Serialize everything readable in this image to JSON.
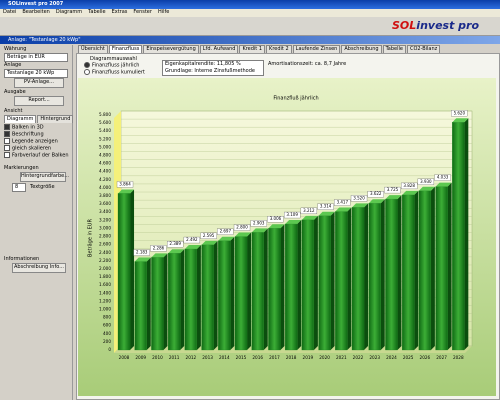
{
  "window": {
    "title": "SOLinvest pro 2007",
    "menu": [
      "Datei",
      "Bearbeiten",
      "Diagramm",
      "Tabelle",
      "Extras",
      "Fenster",
      "Hilfe"
    ],
    "logo": [
      "SOL",
      "invest pro"
    ]
  },
  "document_window": {
    "title": "Anlage: \"Testanlage 20 kWp\""
  },
  "sidebar": {
    "currency_label": "Währung",
    "currency": "Beträge in EUR",
    "plant_label": "Anlage",
    "plant": "Testanlage 20 kWp",
    "plant_button": "PV-Anlage...",
    "output_label": "Ausgabe",
    "report_button": "Report...",
    "view_label": "Ansicht",
    "view_tabs": [
      "Diagramm",
      "Hintergrund"
    ],
    "options": [
      "Balken in 3D",
      "Beschriftung",
      "Legende anzeigen",
      "gleich skalieren",
      "Farbverlauf der Balken"
    ],
    "markers_label": "Markierungen",
    "background_button": "Hintergrundfarbe...",
    "text_size_value": "8",
    "text_size_label": "Textgröße",
    "info_label": "Informationen",
    "info_button": "Abschreibung Info..."
  },
  "tabs": [
    "Übersicht",
    "Finanzfluss",
    "Einspeisevergütung",
    "Lfd. Aufwand",
    "Kredit 1",
    "Kredit 2",
    "Laufende Zinsen",
    "Abschreibung",
    "Tabelle",
    "CO2-Bilanz"
  ],
  "diagram_selection": {
    "title": "Diagrammauswahl",
    "options": [
      "Finanzfluss jährlich",
      "Finanzfluss kumuliert"
    ]
  },
  "results": {
    "return": "Eigenkapitalrendite: 11,805 %",
    "basis": "Grundlage: Interne Zinsfußmethode",
    "payback": "Amortisationszeit: ca. 8,7 Jahre"
  },
  "chart_data": {
    "type": "bar3d",
    "title": "Finanzfluß jährlich",
    "y_label": "Beträge in EUR",
    "color": "#1f8a22",
    "categories": [
      "2008",
      "2009",
      "2010",
      "2011",
      "2012",
      "2013",
      "2014",
      "2015",
      "2016",
      "2017",
      "2018",
      "2019",
      "2020",
      "2021",
      "2022",
      "2023",
      "2024",
      "2025",
      "2026",
      "2027",
      "2028"
    ],
    "values": [
      3864,
      2183,
      2286,
      2389,
      2492,
      2595,
      2697,
      2800,
      2903,
      3006,
      3109,
      3212,
      3314,
      3417,
      3520,
      3622,
      3725,
      3828,
      3930,
      4033,
      5620
    ],
    "value_labels": [
      "3.864",
      "2.183",
      "2.286",
      "2.389",
      "2.492",
      "2.595",
      "2.697",
      "2.800",
      "2.903",
      "3.006",
      "3.109",
      "3.212",
      "3.314",
      "3.417",
      "3.520",
      "3.622",
      "3.725",
      "3.828",
      "3.930",
      "4.033",
      "5.620"
    ],
    "ylim": [
      0,
      5800
    ],
    "yticks": [
      0,
      200,
      400,
      600,
      800,
      {
        "value": 1000,
        "label": "1.000"
      },
      {
        "value": 1200,
        "label": "1.200"
      },
      {
        "value": 1400,
        "label": "1.400"
      },
      {
        "value": 1600,
        "label": "1.600"
      },
      {
        "value": 1800,
        "label": "1.800"
      },
      {
        "value": 2000,
        "label": "2.000"
      },
      {
        "value": 2200,
        "label": "2.200"
      },
      {
        "value": 2400,
        "label": "2.400"
      },
      {
        "value": 2600,
        "label": "2.600"
      },
      {
        "value": 2800,
        "label": "2.800"
      },
      {
        "value": 3000,
        "label": "3.000"
      },
      {
        "value": 3200,
        "label": "3.200"
      },
      {
        "value": 3400,
        "label": "3.400"
      },
      {
        "value": 3600,
        "label": "3.600"
      },
      {
        "value": 3800,
        "label": "3.800"
      },
      {
        "value": 4000,
        "label": "4.000"
      },
      {
        "value": 4200,
        "label": "4.200"
      },
      {
        "value": 4400,
        "label": "4.400"
      },
      {
        "value": 4600,
        "label": "4.600"
      },
      {
        "value": 4800,
        "label": "4.800"
      },
      {
        "value": 5000,
        "label": "5.000"
      },
      {
        "value": 5200,
        "label": "5.200"
      },
      {
        "value": 5400,
        "label": "5.400"
      },
      {
        "value": 5600,
        "label": "5.600"
      },
      {
        "value": 5800,
        "label": "5.800"
      }
    ],
    "grid": true
  }
}
